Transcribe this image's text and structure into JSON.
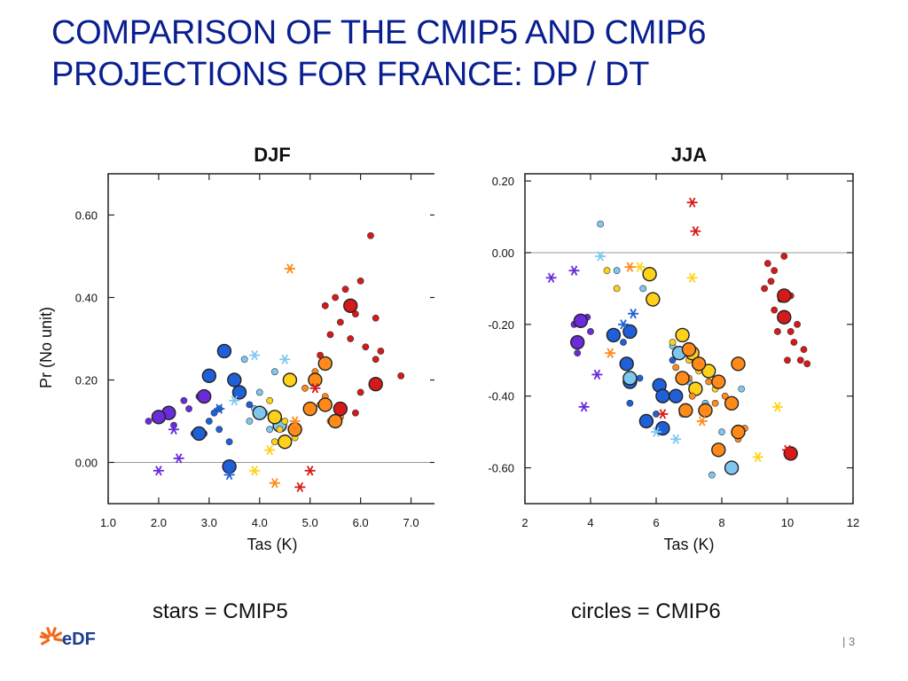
{
  "slide": {
    "title_line1": "COMPARISON OF THE CMIP5 AND CMIP6",
    "title_line2": "PROJECTIONS FOR FRANCE: DP / DT",
    "caption_left": "stars = CMIP5",
    "caption_right": "circles = CMIP6",
    "logo_text": "eDF",
    "page_number": "| 3"
  },
  "colors": {
    "title": "#0a1f8f",
    "purple": "#6a2bd8",
    "blue": "#1f5fd8",
    "light_blue": "#7ec8f0",
    "yellow": "#ffd21a",
    "orange": "#ff8a1a",
    "red": "#d61a1a",
    "logo_orange": "#f26b1d",
    "logo_blue": "#1b3e8f"
  },
  "chart_data": [
    {
      "type": "scatter",
      "title": "DJF",
      "xlabel": "Tas (K)",
      "ylabel": "Pr (No unit)",
      "xlim": [
        1.0,
        7.5
      ],
      "ylim": [
        -0.1,
        0.7
      ],
      "xticks": [
        "1.0",
        "2.0",
        "3.0",
        "4.0",
        "5.0",
        "6.0",
        "7.0"
      ],
      "yticks": [
        "0.00",
        "0.20",
        "0.40",
        "0.60"
      ],
      "ytick_values": [
        0.0,
        0.2,
        0.4,
        0.6
      ],
      "reference_line_y": 0.0,
      "series": [
        {
          "color": "purple",
          "points": [
            [
              1.8,
              0.1
            ],
            [
              2.0,
              0.11
            ],
            [
              2.2,
              0.12
            ],
            [
              2.5,
              0.15
            ],
            [
              2.8,
              0.16
            ],
            [
              2.6,
              0.13
            ],
            [
              2.3,
              0.09
            ],
            [
              2.9,
              0.07
            ]
          ],
          "big": [
            [
              2.2,
              0.12
            ],
            [
              2.9,
              0.16
            ],
            [
              2.0,
              0.11
            ]
          ],
          "stars": [
            [
              2.0,
              -0.02
            ],
            [
              2.4,
              0.01
            ],
            [
              2.3,
              0.08
            ]
          ]
        },
        {
          "color": "blue",
          "points": [
            [
              2.7,
              0.07
            ],
            [
              3.0,
              0.1
            ],
            [
              3.2,
              0.13
            ],
            [
              3.3,
              0.27
            ],
            [
              3.5,
              0.2
            ],
            [
              3.6,
              0.17
            ],
            [
              3.4,
              0.05
            ],
            [
              3.1,
              0.12
            ],
            [
              3.8,
              0.14
            ],
            [
              3.2,
              0.08
            ]
          ],
          "big": [
            [
              3.3,
              0.27
            ],
            [
              3.5,
              0.2
            ],
            [
              2.8,
              0.07
            ],
            [
              3.4,
              -0.01
            ],
            [
              3.0,
              0.21
            ],
            [
              3.6,
              0.17
            ]
          ],
          "stars": [
            [
              3.4,
              -0.03
            ],
            [
              3.2,
              0.13
            ]
          ]
        },
        {
          "color": "light_blue",
          "points": [
            [
              3.9,
              0.13
            ],
            [
              4.1,
              0.12
            ],
            [
              3.7,
              0.25
            ],
            [
              4.3,
              0.22
            ],
            [
              4.0,
              0.17
            ],
            [
              3.8,
              0.1
            ],
            [
              4.2,
              0.08
            ]
          ],
          "big": [
            [
              4.0,
              0.12
            ],
            [
              4.4,
              0.09
            ]
          ],
          "stars": [
            [
              3.5,
              0.15
            ],
            [
              4.5,
              0.25
            ],
            [
              3.9,
              0.26
            ]
          ]
        },
        {
          "color": "yellow",
          "points": [
            [
              4.4,
              0.08
            ],
            [
              4.5,
              0.1
            ],
            [
              4.3,
              0.05
            ],
            [
              4.6,
              0.2
            ],
            [
              4.7,
              0.06
            ],
            [
              4.2,
              0.15
            ]
          ],
          "big": [
            [
              4.6,
              0.2
            ],
            [
              4.3,
              0.11
            ],
            [
              4.5,
              0.05
            ]
          ],
          "stars": [
            [
              3.9,
              -0.02
            ],
            [
              4.2,
              0.03
            ]
          ]
        },
        {
          "color": "orange",
          "points": [
            [
              5.0,
              0.13
            ],
            [
              5.2,
              0.14
            ],
            [
              5.3,
              0.16
            ],
            [
              5.1,
              0.22
            ],
            [
              5.4,
              0.1
            ],
            [
              5.6,
              0.11
            ],
            [
              4.9,
              0.18
            ]
          ],
          "big": [
            [
              5.3,
              0.24
            ],
            [
              5.1,
              0.2
            ],
            [
              5.0,
              0.13
            ],
            [
              5.3,
              0.14
            ],
            [
              5.5,
              0.1
            ],
            [
              4.7,
              0.08
            ]
          ],
          "stars": [
            [
              4.6,
              0.47
            ],
            [
              4.3,
              -0.05
            ],
            [
              4.7,
              0.1
            ]
          ]
        },
        {
          "color": "red",
          "points": [
            [
              5.3,
              0.38
            ],
            [
              5.5,
              0.4
            ],
            [
              5.7,
              0.42
            ],
            [
              5.9,
              0.36
            ],
            [
              6.0,
              0.44
            ],
            [
              6.2,
              0.55
            ],
            [
              5.8,
              0.3
            ],
            [
              6.1,
              0.28
            ],
            [
              6.3,
              0.25
            ],
            [
              5.4,
              0.31
            ],
            [
              5.6,
              0.34
            ],
            [
              6.4,
              0.27
            ],
            [
              6.8,
              0.21
            ],
            [
              6.0,
              0.17
            ],
            [
              5.9,
              0.12
            ],
            [
              6.3,
              0.35
            ],
            [
              5.2,
              0.26
            ]
          ],
          "big": [
            [
              5.8,
              0.38
            ],
            [
              6.3,
              0.19
            ],
            [
              5.6,
              0.13
            ]
          ],
          "stars": [
            [
              5.0,
              -0.02
            ],
            [
              5.1,
              0.18
            ],
            [
              4.8,
              -0.06
            ]
          ]
        }
      ]
    },
    {
      "type": "scatter",
      "title": "JJA",
      "xlabel": "Tas (K)",
      "ylabel": "",
      "xlim": [
        2,
        12
      ],
      "ylim": [
        -0.7,
        0.22
      ],
      "xticks": [
        "2",
        "4",
        "6",
        "8",
        "10",
        "12"
      ],
      "yticks": [
        "0.20",
        "0.00",
        "-0.20",
        "-0.40",
        "-0.60"
      ],
      "ytick_values": [
        0.2,
        0.0,
        -0.2,
        -0.4,
        -0.6
      ],
      "reference_line_y": 0.0,
      "series": [
        {
          "color": "purple",
          "points": [
            [
              3.5,
              -0.2
            ],
            [
              3.7,
              -0.25
            ],
            [
              3.9,
              -0.18
            ],
            [
              3.6,
              -0.28
            ],
            [
              4.0,
              -0.22
            ]
          ],
          "big": [
            [
              3.7,
              -0.19
            ],
            [
              3.6,
              -0.25
            ]
          ],
          "stars": [
            [
              2.8,
              -0.07
            ],
            [
              3.8,
              -0.43
            ],
            [
              4.2,
              -0.34
            ],
            [
              3.5,
              -0.05
            ]
          ]
        },
        {
          "color": "blue",
          "points": [
            [
              5.0,
              -0.25
            ],
            [
              5.5,
              -0.35
            ],
            [
              6.0,
              -0.45
            ],
            [
              6.3,
              -0.4
            ],
            [
              5.8,
              -0.47
            ],
            [
              6.5,
              -0.3
            ],
            [
              5.2,
              -0.42
            ]
          ],
          "big": [
            [
              4.7,
              -0.23
            ],
            [
              5.2,
              -0.22
            ],
            [
              5.1,
              -0.31
            ],
            [
              6.1,
              -0.37
            ],
            [
              5.7,
              -0.47
            ],
            [
              6.2,
              -0.4
            ],
            [
              6.6,
              -0.4
            ],
            [
              6.2,
              -0.49
            ],
            [
              5.2,
              -0.36
            ]
          ],
          "stars": [
            [
              5.3,
              -0.17
            ],
            [
              5.0,
              -0.2
            ]
          ]
        },
        {
          "color": "light_blue",
          "points": [
            [
              4.3,
              0.08
            ],
            [
              4.8,
              -0.05
            ],
            [
              5.6,
              -0.1
            ],
            [
              6.5,
              -0.26
            ],
            [
              7.0,
              -0.36
            ],
            [
              7.5,
              -0.42
            ],
            [
              8.0,
              -0.5
            ],
            [
              6.8,
              -0.45
            ],
            [
              7.7,
              -0.62
            ],
            [
              8.6,
              -0.38
            ]
          ],
          "big": [
            [
              6.7,
              -0.28
            ],
            [
              8.3,
              -0.6
            ],
            [
              5.2,
              -0.35
            ]
          ],
          "stars": [
            [
              4.3,
              -0.01
            ],
            [
              6.6,
              -0.52
            ],
            [
              6.0,
              -0.5
            ]
          ]
        },
        {
          "color": "yellow",
          "points": [
            [
              4.5,
              -0.05
            ],
            [
              4.8,
              -0.1
            ],
            [
              6.5,
              -0.25
            ],
            [
              7.0,
              -0.3
            ],
            [
              7.3,
              -0.33
            ],
            [
              7.8,
              -0.38
            ]
          ],
          "big": [
            [
              5.8,
              -0.06
            ],
            [
              5.9,
              -0.13
            ],
            [
              6.8,
              -0.23
            ],
            [
              7.1,
              -0.28
            ],
            [
              7.6,
              -0.33
            ],
            [
              7.2,
              -0.38
            ]
          ],
          "stars": [
            [
              9.7,
              -0.43
            ],
            [
              9.1,
              -0.57
            ],
            [
              5.5,
              -0.04
            ],
            [
              7.1,
              -0.07
            ]
          ]
        },
        {
          "color": "orange",
          "points": [
            [
              6.6,
              -0.32
            ],
            [
              7.0,
              -0.35
            ],
            [
              7.3,
              -0.3
            ],
            [
              7.6,
              -0.36
            ],
            [
              8.1,
              -0.4
            ],
            [
              7.8,
              -0.42
            ],
            [
              8.7,
              -0.49
            ],
            [
              8.5,
              -0.52
            ],
            [
              7.1,
              -0.4
            ]
          ],
          "big": [
            [
              7.0,
              -0.27
            ],
            [
              7.3,
              -0.31
            ],
            [
              6.8,
              -0.35
            ],
            [
              7.9,
              -0.36
            ],
            [
              8.3,
              -0.42
            ],
            [
              7.9,
              -0.55
            ],
            [
              8.5,
              -0.5
            ],
            [
              7.5,
              -0.44
            ],
            [
              8.5,
              -0.31
            ],
            [
              6.9,
              -0.44
            ]
          ],
          "stars": [
            [
              4.6,
              -0.28
            ],
            [
              5.2,
              -0.04
            ],
            [
              7.4,
              -0.47
            ]
          ]
        },
        {
          "color": "red",
          "points": [
            [
              9.3,
              -0.1
            ],
            [
              9.5,
              -0.08
            ],
            [
              9.6,
              -0.16
            ],
            [
              9.8,
              -0.13
            ],
            [
              10.0,
              -0.18
            ],
            [
              9.7,
              -0.22
            ],
            [
              10.2,
              -0.25
            ],
            [
              10.5,
              -0.27
            ],
            [
              9.9,
              -0.01
            ],
            [
              9.4,
              -0.03
            ],
            [
              10.1,
              -0.22
            ],
            [
              10.3,
              -0.2
            ],
            [
              10.0,
              -0.3
            ],
            [
              10.6,
              -0.31
            ],
            [
              10.4,
              -0.3
            ],
            [
              9.6,
              -0.05
            ],
            [
              10.1,
              -0.12
            ]
          ],
          "big": [
            [
              10.1,
              -0.56
            ],
            [
              9.9,
              -0.12
            ],
            [
              9.9,
              -0.18
            ]
          ],
          "stars": [
            [
              7.1,
              0.14
            ],
            [
              7.2,
              0.06
            ],
            [
              6.2,
              -0.45
            ],
            [
              10.0,
              -0.55
            ]
          ]
        }
      ]
    }
  ]
}
